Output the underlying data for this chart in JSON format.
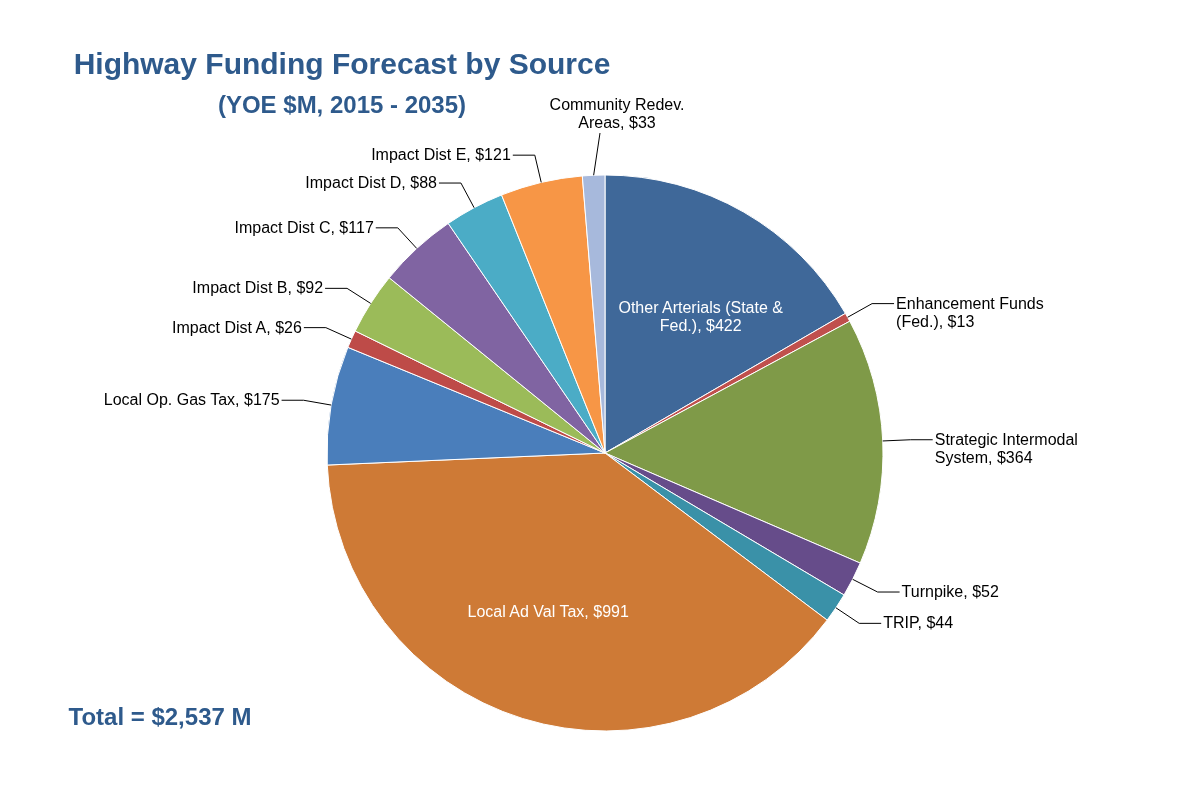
{
  "chart_data": {
    "type": "pie",
    "title": "Highway Funding Forecast by Source",
    "subtitle": "(YOE $M, 2015 - 2035)",
    "categories": [
      "Other Arterials (State & Fed.)",
      "Enhancement Funds (Fed.)",
      "Strategic Intermodal System",
      "Turnpike",
      "TRIP",
      "Local Ad Val Tax",
      "Local Op. Gas Tax",
      "Impact Dist A",
      "Impact Dist B",
      "Impact Dist C",
      "Impact Dist D",
      "Impact Dist E",
      "Community Redev. Areas"
    ],
    "values": [
      422,
      13,
      364,
      52,
      44,
      991,
      175,
      26,
      92,
      117,
      88,
      121,
      33
    ],
    "value_labels": [
      "$422",
      "$13",
      "$364",
      "$52",
      "$44",
      "$991",
      "$175",
      "$26",
      "$92",
      "$117",
      "$88",
      "$121",
      "$33"
    ],
    "colors": [
      "#3f6899",
      "#c0504d",
      "#7f9a48",
      "#664c8a",
      "#3a91a8",
      "#ce7a36",
      "#4a7ebb",
      "#be4b48",
      "#9bbb59",
      "#8064a2",
      "#4bacc6",
      "#f79646",
      "#a7b9dc"
    ],
    "annotations": [
      "Total = $2,537 M"
    ]
  }
}
